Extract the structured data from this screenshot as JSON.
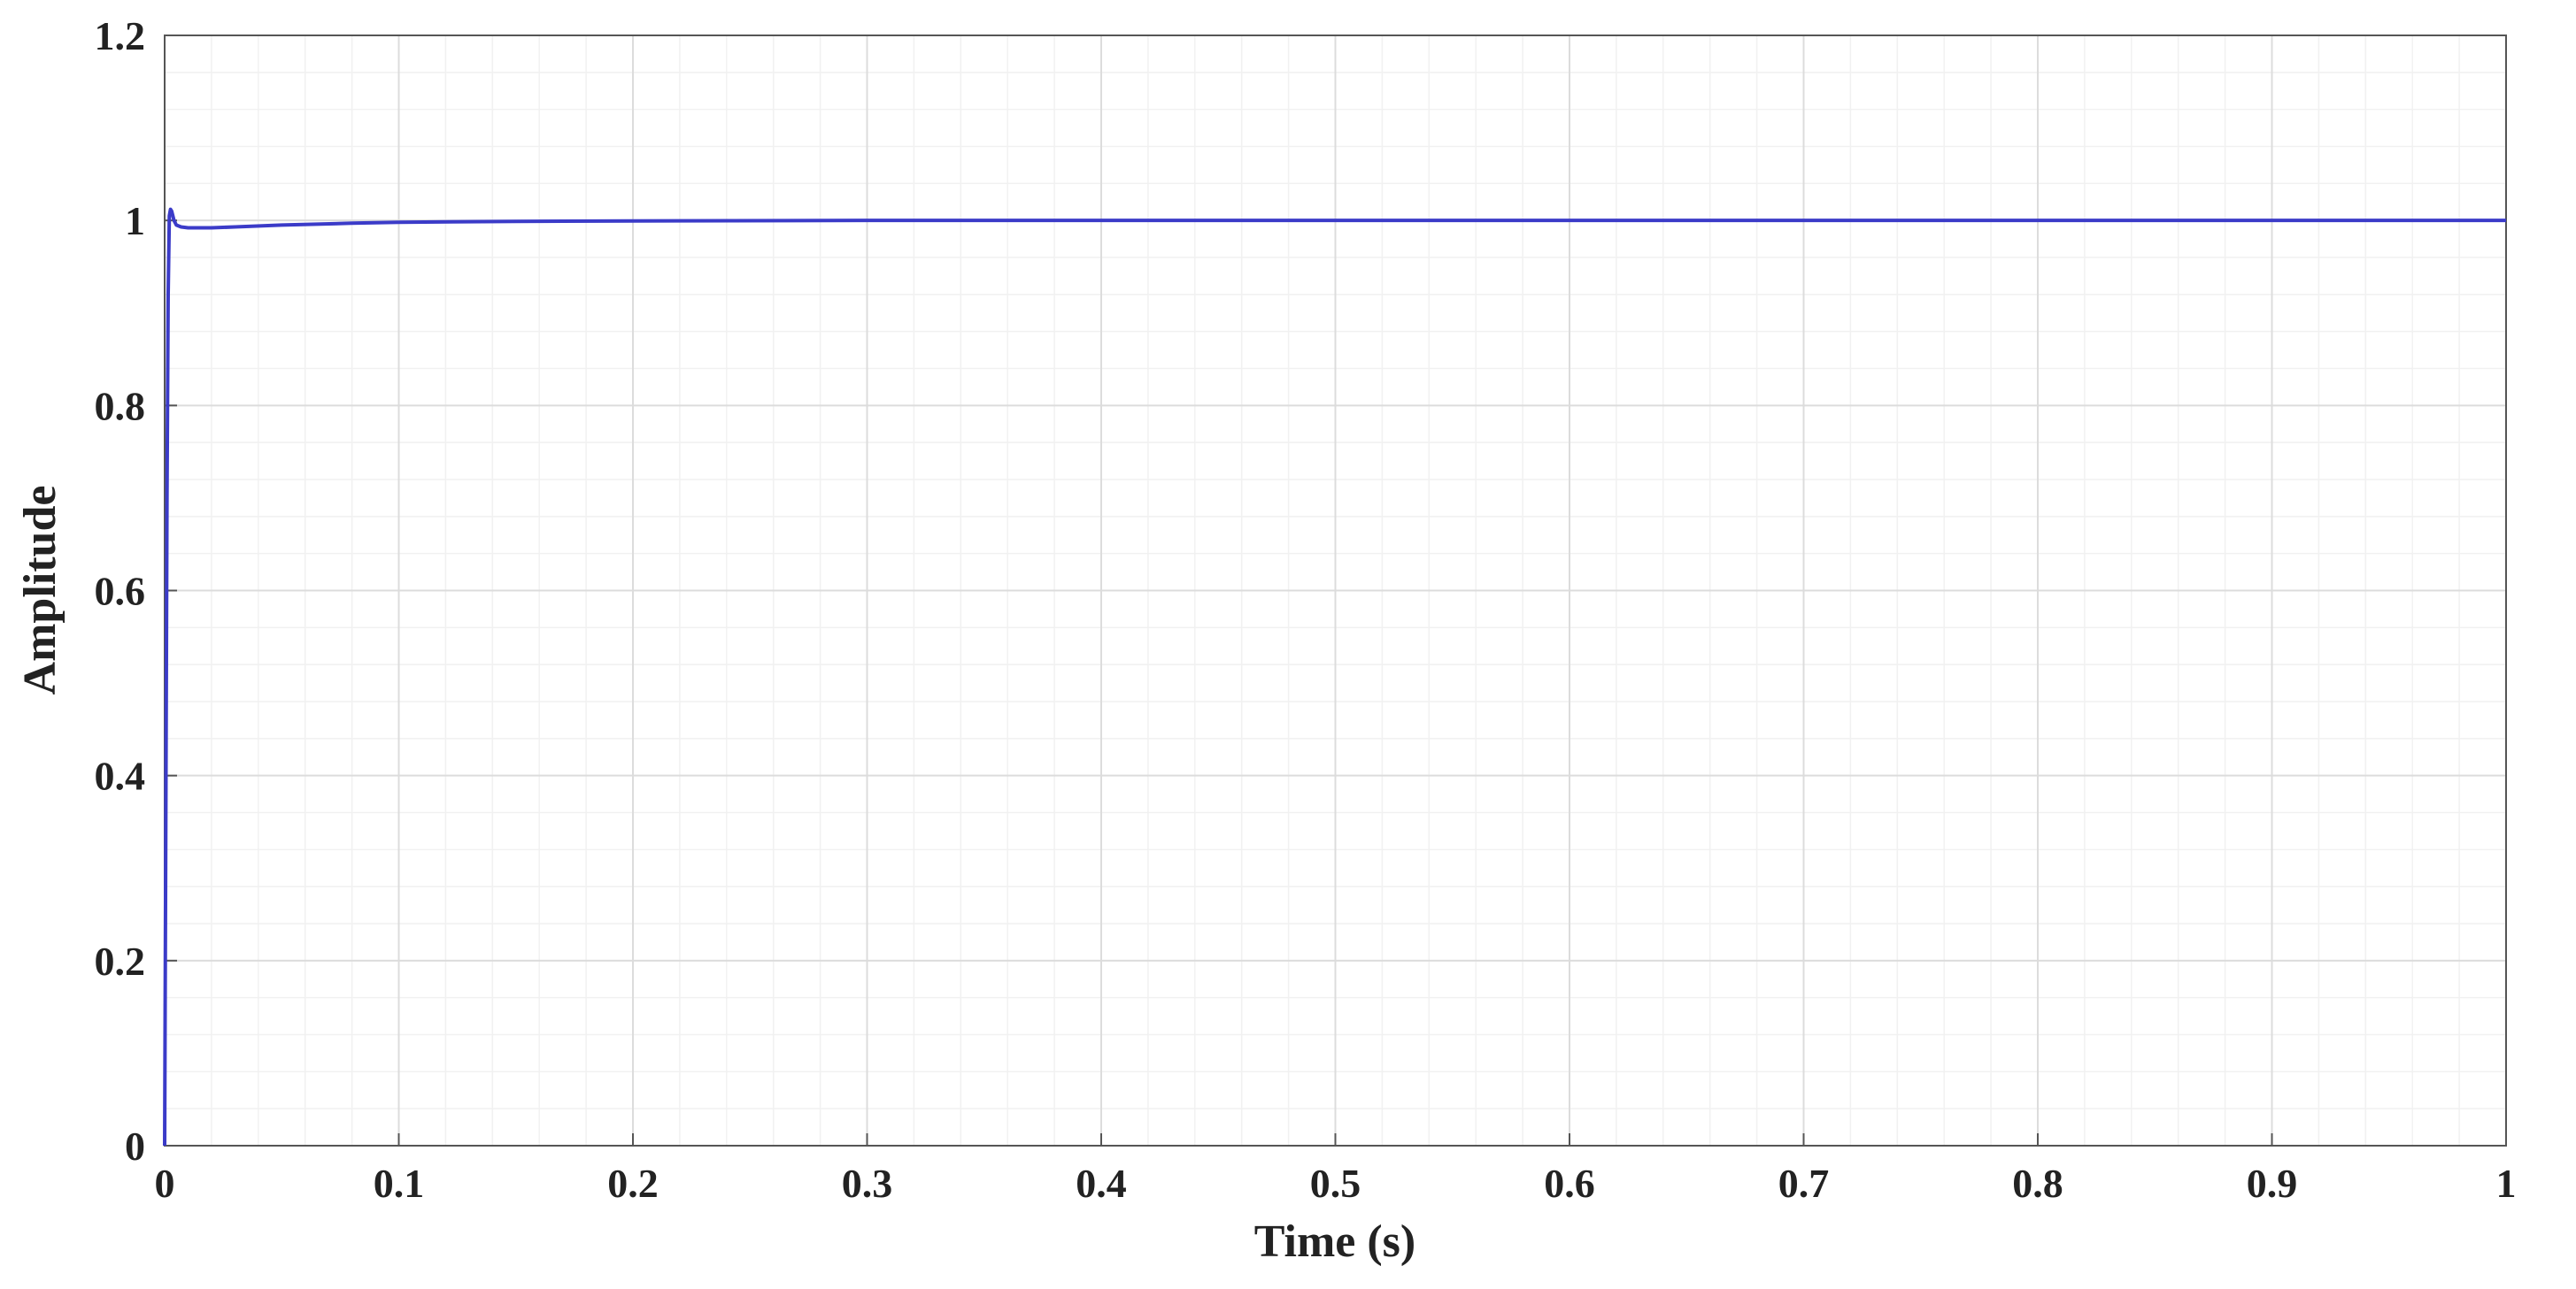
{
  "chart_data": {
    "type": "line",
    "title": "",
    "xlabel": "Time (s)",
    "ylabel": "Amplitude",
    "xlim": [
      0,
      1
    ],
    "ylim": [
      0,
      1.2
    ],
    "x_ticks": [
      0,
      0.1,
      0.2,
      0.3,
      0.4,
      0.5,
      0.6,
      0.7,
      0.8,
      0.9,
      1
    ],
    "x_tick_labels": [
      "0",
      "0.1",
      "0.2",
      "0.3",
      "0.4",
      "0.5",
      "0.6",
      "0.7",
      "0.8",
      "0.9",
      "1"
    ],
    "y_ticks": [
      0,
      0.2,
      0.4,
      0.6,
      0.8,
      1,
      1.2
    ],
    "y_tick_labels": [
      "0",
      "0.2",
      "0.4",
      "0.6",
      "0.8",
      "1",
      "1.2"
    ],
    "grid": true,
    "minor_grid": true,
    "legend": "none",
    "series": [
      {
        "color": "#3b3bc8",
        "x": [
          0,
          0.0005,
          0.001,
          0.0015,
          0.002,
          0.0025,
          0.003,
          0.004,
          0.005,
          0.007,
          0.01,
          0.015,
          0.02,
          0.03,
          0.05,
          0.08,
          0.1,
          0.15,
          0.2,
          0.3,
          0.4,
          0.5,
          0.6,
          0.7,
          0.8,
          0.9,
          1.0
        ],
        "y": [
          0,
          0.35,
          0.7,
          0.92,
          1.005,
          1.012,
          1.01,
          1.0,
          0.995,
          0.993,
          0.992,
          0.992,
          0.992,
          0.993,
          0.995,
          0.997,
          0.998,
          0.999,
          0.9995,
          1.0,
          1.0,
          1.0,
          1.0,
          1.0,
          1.0,
          1.0,
          1.0
        ]
      }
    ]
  }
}
